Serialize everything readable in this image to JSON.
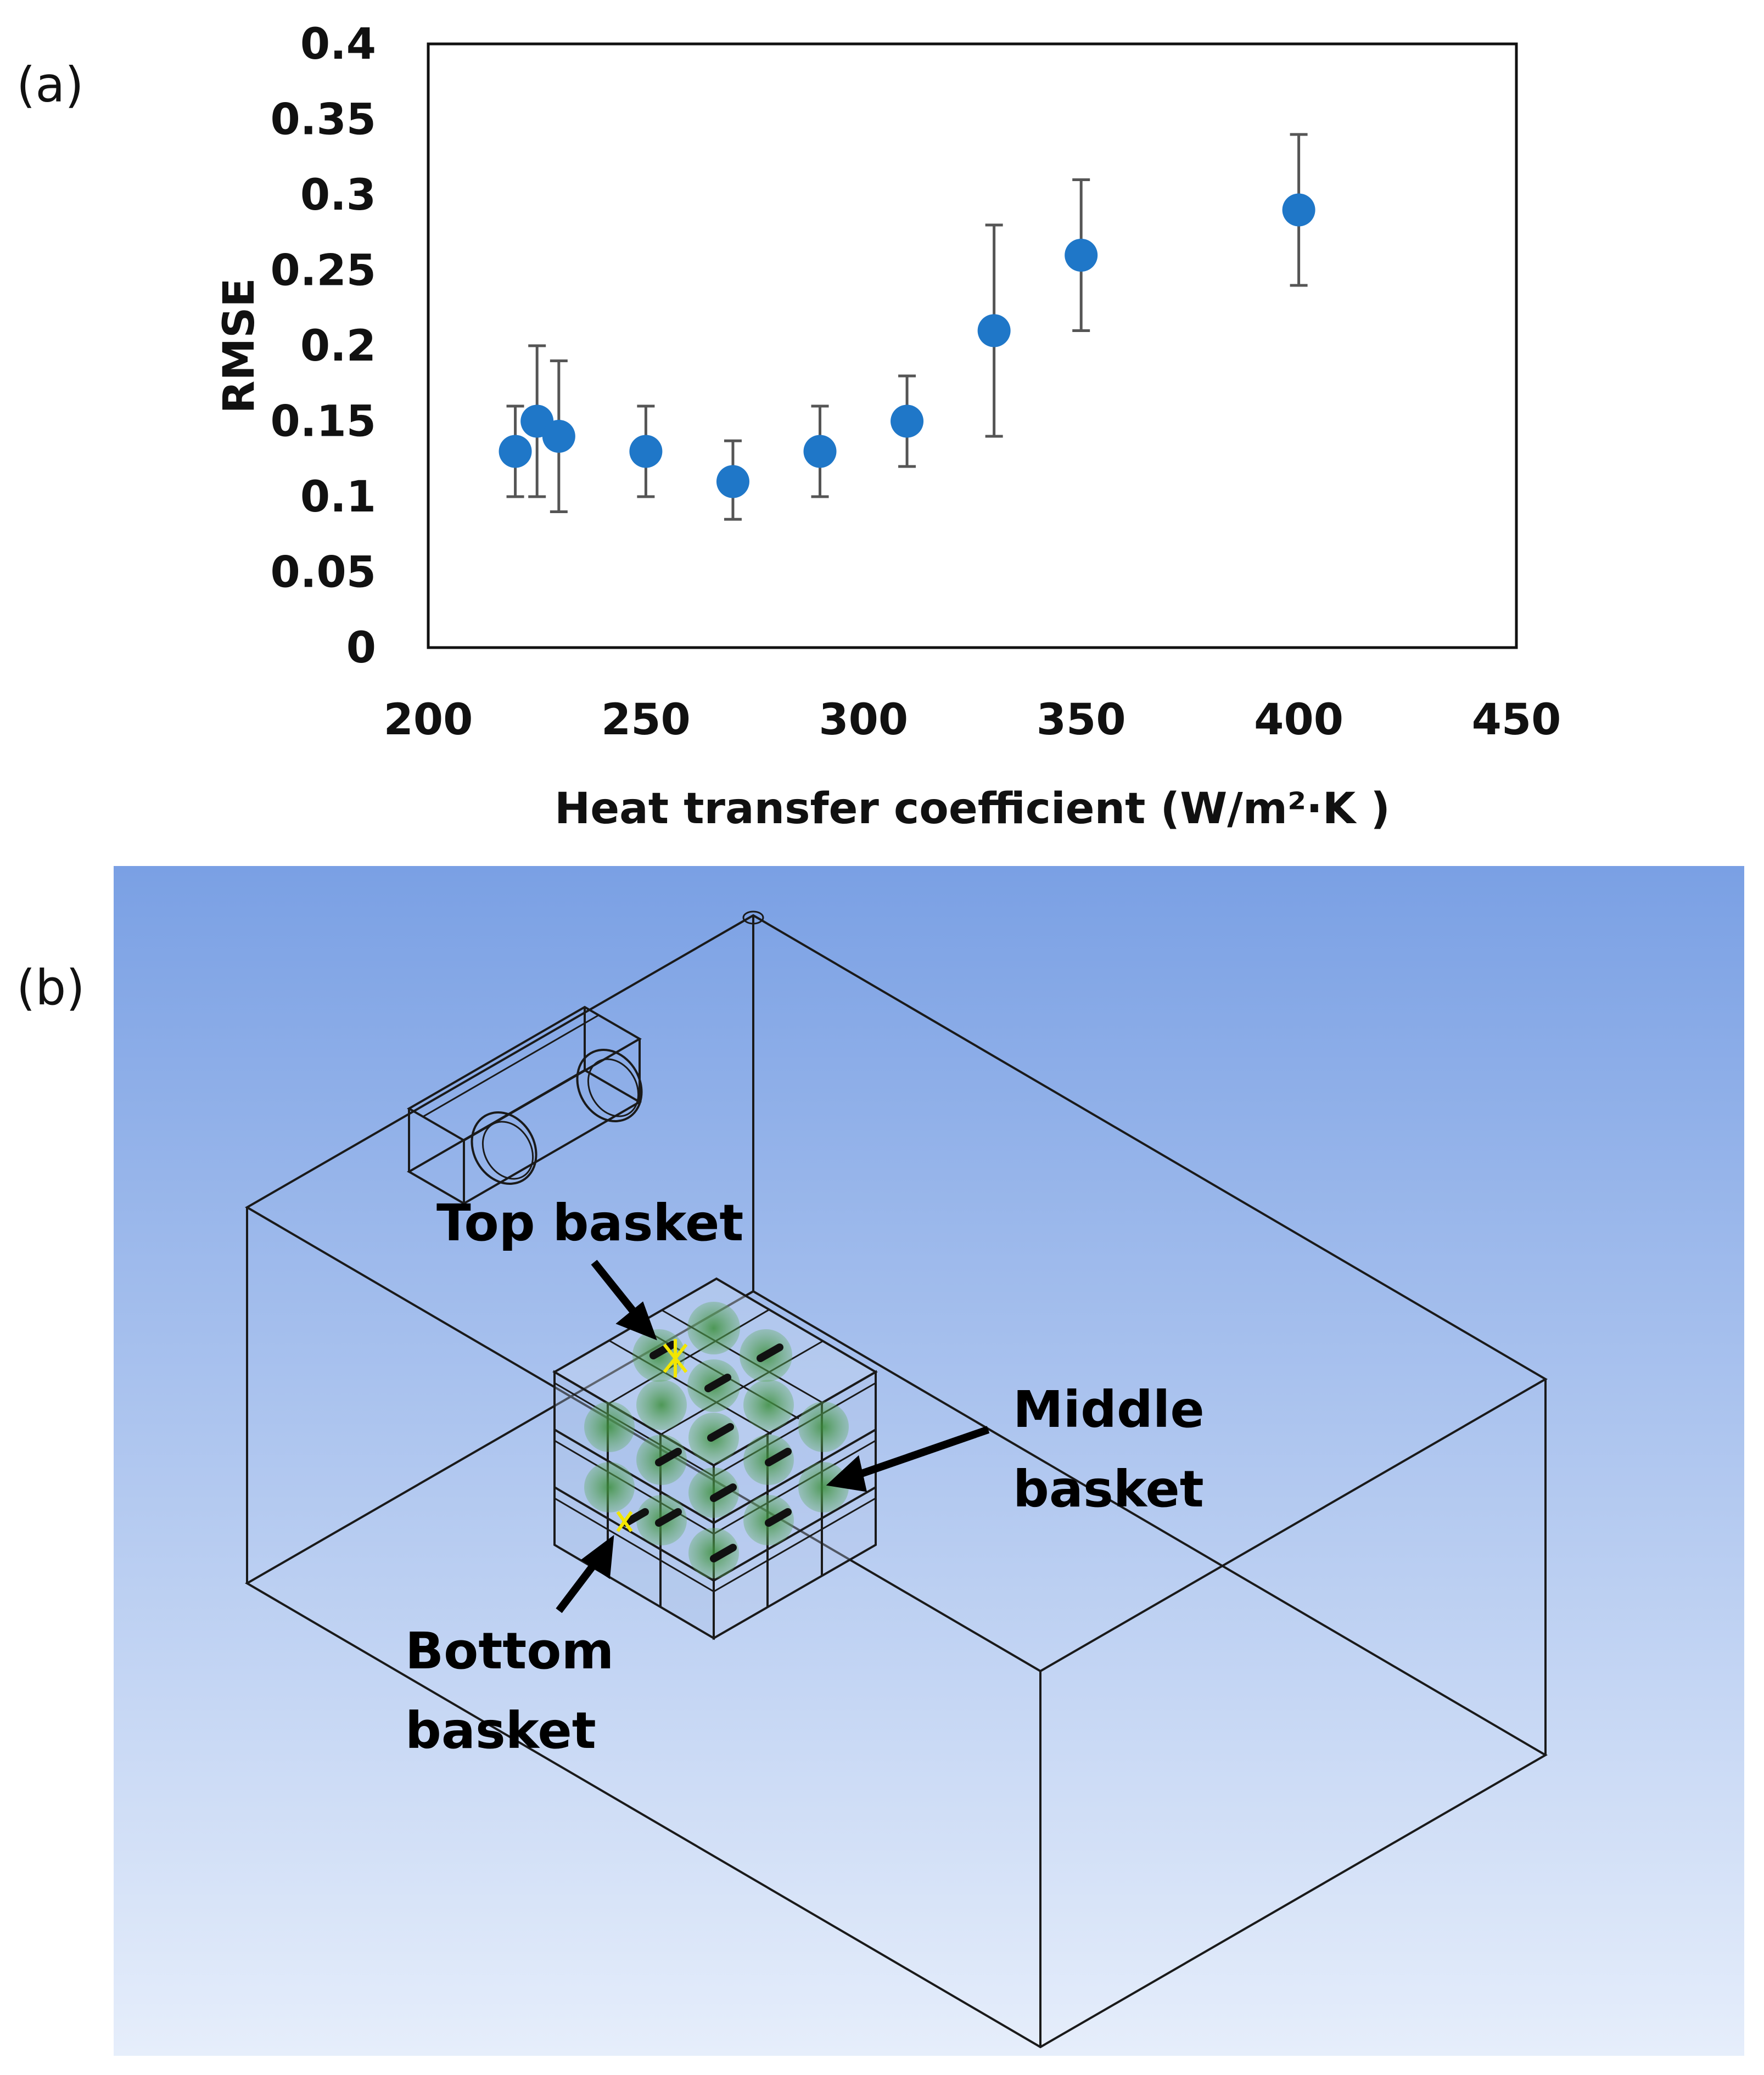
{
  "panel_a": {
    "label": "(a)",
    "chart_data": {
      "type": "scatter",
      "xlabel": "Heat transfer coefficient (W/m²·K )",
      "ylabel": "RMSE",
      "xlim": [
        200,
        450
      ],
      "ylim": [
        0,
        0.4
      ],
      "x_ticks": [
        "200",
        "250",
        "300",
        "350",
        "400",
        "450"
      ],
      "y_ticks": [
        "0",
        "0.05",
        "0.1",
        "0.15",
        "0.2",
        "0.25",
        "0.3",
        "0.35",
        "0.4"
      ],
      "grid": false,
      "points": [
        {
          "x": 220,
          "y": 0.13,
          "err_low": 0.1,
          "err_high": 0.16
        },
        {
          "x": 225,
          "y": 0.15,
          "err_low": 0.1,
          "err_high": 0.2
        },
        {
          "x": 230,
          "y": 0.14,
          "err_low": 0.09,
          "err_high": 0.19
        },
        {
          "x": 250,
          "y": 0.13,
          "err_low": 0.1,
          "err_high": 0.16
        },
        {
          "x": 270,
          "y": 0.11,
          "err_low": 0.085,
          "err_high": 0.137
        },
        {
          "x": 290,
          "y": 0.13,
          "err_low": 0.1,
          "err_high": 0.16
        },
        {
          "x": 310,
          "y": 0.15,
          "err_low": 0.12,
          "err_high": 0.18
        },
        {
          "x": 330,
          "y": 0.21,
          "err_low": 0.14,
          "err_high": 0.28
        },
        {
          "x": 350,
          "y": 0.26,
          "err_low": 0.21,
          "err_high": 0.31
        },
        {
          "x": 400,
          "y": 0.29,
          "err_low": 0.24,
          "err_high": 0.34
        }
      ],
      "marker_color": "#1f77c8",
      "errorbar_color": "#555555"
    }
  },
  "panel_b": {
    "label": "(b)",
    "background_top": "#7aa0e4",
    "background_bottom": "#e6eefb",
    "callouts": {
      "top_basket": "Top basket",
      "middle_basket_line1": "Middle",
      "middle_basket_line2": "basket",
      "bottom_basket_line1": "Bottom",
      "bottom_basket_line2": "basket"
    }
  }
}
